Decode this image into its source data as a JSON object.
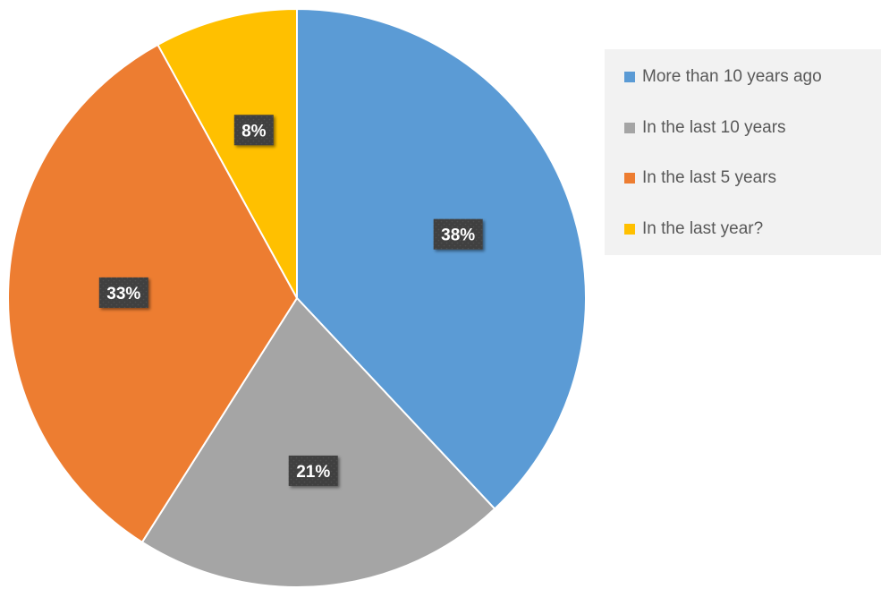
{
  "chart_data": {
    "type": "pie",
    "title": "",
    "categories": [
      "More than 10 years ago",
      "In the last 10 years",
      "In the last 5 years",
      "In the last year?"
    ],
    "values": [
      38,
      21,
      33,
      8
    ],
    "data_labels": [
      "38%",
      "21%",
      "33%",
      "8%"
    ],
    "colors": [
      "#5b9bd5",
      "#a5a5a5",
      "#ed7d31",
      "#ffc000"
    ],
    "start_angle_deg": 0,
    "direction": "clockwise",
    "legend": {
      "position": "right",
      "entries": [
        "More than 10 years ago",
        "In the last 10 years",
        "In the last 5 years",
        "In the last year?"
      ]
    },
    "label_style": {
      "background": "#404040",
      "text_color": "#ffffff"
    }
  }
}
